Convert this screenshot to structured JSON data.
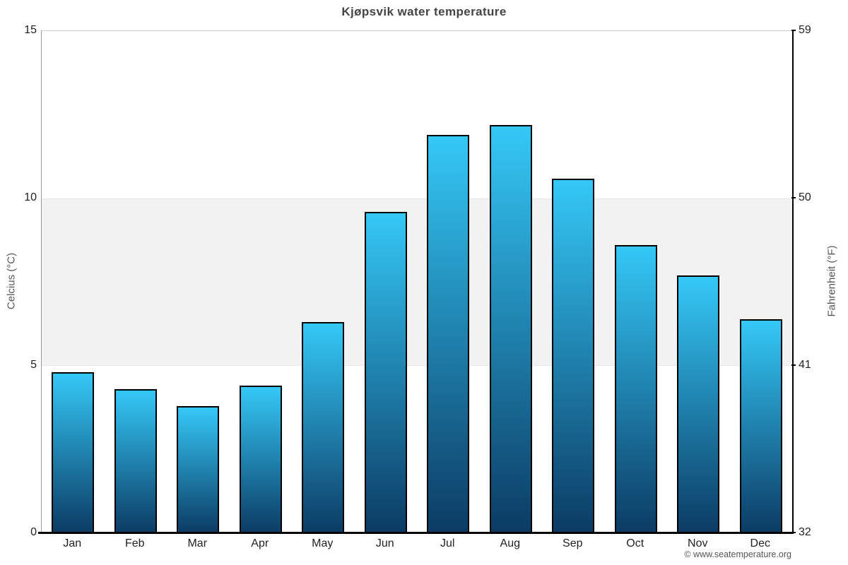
{
  "title": "Kjøpsvik water temperature",
  "copyright": "© www.seatemperature.org",
  "y_axis_left": {
    "label": "Celcius (°C)",
    "ticks": [
      15,
      10,
      5,
      0
    ]
  },
  "y_axis_right": {
    "label": "Fahrenheit (°F)",
    "ticks": [
      59,
      50,
      41,
      32
    ]
  },
  "chart_data": {
    "type": "bar",
    "title": "Kjøpsvik water temperature",
    "categories": [
      "Jan",
      "Feb",
      "Mar",
      "Apr",
      "May",
      "Jun",
      "Jul",
      "Aug",
      "Sep",
      "Oct",
      "Nov",
      "Dec"
    ],
    "values": [
      4.8,
      4.3,
      3.8,
      4.4,
      6.3,
      9.6,
      11.9,
      12.2,
      10.6,
      8.6,
      7.7,
      6.4
    ],
    "xlabel": "",
    "ylabel": "Celcius (°C)",
    "ylabel_right": "Fahrenheit (°F)",
    "ylim": [
      0,
      15
    ],
    "yticks_left": [
      0,
      5,
      10,
      15
    ],
    "yticks_right": [
      32,
      41,
      50,
      59
    ],
    "shaded_band": {
      "from": 5,
      "to": 10,
      "color": "#f2f2f2"
    },
    "grid": false,
    "legend": false
  },
  "colors": {
    "background": "#ffffff",
    "title_text": "#444444",
    "axis_title_text": "#555555",
    "tick_label_text": "#222222",
    "left_axis_line": "#999999",
    "right_axis_line": "#000000",
    "baseline": "#000000",
    "plot_top_border": "#cccccc",
    "band_fill": "#f2f2f2",
    "bar_gradient_top": "#35c8f7",
    "bar_gradient_bottom": "#0b3b64",
    "bar_border": "#000000",
    "copyright_text": "#555555"
  }
}
